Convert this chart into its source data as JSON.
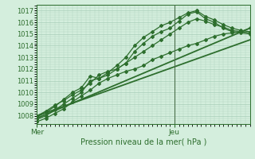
{
  "xlabel": "Pression niveau de la mer( hPa )",
  "ylim": [
    1007.3,
    1017.5
  ],
  "xlim": [
    0,
    48
  ],
  "yticks": [
    1008,
    1009,
    1010,
    1011,
    1012,
    1013,
    1014,
    1015,
    1016,
    1017
  ],
  "xtick_positions": [
    0,
    31
  ],
  "xtick_labels": [
    "Mer",
    "Jeu"
  ],
  "vline_x": 31,
  "bg_color": "#d4eedd",
  "grid_color": "#a8cdb8",
  "line_color": "#2d6e2d",
  "marker_color": "#2d6e2d",
  "line1_x": [
    0,
    2,
    4,
    6,
    8,
    10,
    12,
    14,
    16,
    18,
    20,
    22,
    24,
    26,
    28,
    30,
    32,
    34,
    36,
    38,
    40,
    42,
    44,
    46,
    48
  ],
  "line1_y": [
    1007.7,
    1008.0,
    1008.5,
    1009.0,
    1009.5,
    1010.0,
    1011.0,
    1011.2,
    1011.5,
    1012.0,
    1012.5,
    1013.5,
    1014.2,
    1014.8,
    1015.2,
    1015.5,
    1016.1,
    1016.7,
    1016.9,
    1016.3,
    1016.0,
    1015.5,
    1015.2,
    1015.1,
    1015.0
  ],
  "line2_x": [
    0,
    2,
    4,
    6,
    8,
    10,
    12,
    14,
    16,
    18,
    20,
    22,
    24,
    26,
    28,
    30,
    32,
    34,
    36,
    38,
    40,
    42,
    44,
    46,
    48
  ],
  "line2_y": [
    1007.9,
    1008.3,
    1008.8,
    1009.4,
    1010.0,
    1010.4,
    1011.4,
    1011.2,
    1011.7,
    1012.3,
    1013.0,
    1014.0,
    1014.7,
    1015.2,
    1015.7,
    1016.0,
    1016.4,
    1016.8,
    1017.0,
    1016.5,
    1016.2,
    1015.8,
    1015.5,
    1015.3,
    1015.2
  ],
  "line3_x": [
    0,
    2,
    4,
    6,
    8,
    10,
    12,
    14,
    16,
    18,
    20,
    22,
    24,
    26,
    28,
    30,
    32,
    34,
    36,
    38,
    40,
    42,
    44,
    46,
    48
  ],
  "line3_y": [
    1008.0,
    1008.4,
    1008.9,
    1009.3,
    1009.8,
    1010.2,
    1010.8,
    1011.5,
    1011.8,
    1012.0,
    1012.5,
    1013.0,
    1013.5,
    1014.0,
    1014.5,
    1015.0,
    1015.5,
    1016.0,
    1016.3,
    1016.1,
    1015.8,
    1015.6,
    1015.3,
    1015.2,
    1015.1
  ],
  "line4_x": [
    0,
    2,
    4,
    6,
    8,
    10,
    12,
    14,
    16,
    18,
    20,
    22,
    24,
    26,
    28,
    30,
    32,
    34,
    36,
    38,
    40,
    42,
    44,
    46,
    48
  ],
  "line4_y": [
    1007.5,
    1007.8,
    1008.2,
    1008.6,
    1009.2,
    1009.7,
    1010.2,
    1010.8,
    1011.2,
    1011.5,
    1011.8,
    1012.0,
    1012.3,
    1012.8,
    1013.1,
    1013.4,
    1013.7,
    1014.0,
    1014.2,
    1014.5,
    1014.8,
    1015.0,
    1015.1,
    1015.2,
    1015.5
  ],
  "trend1_x": [
    0,
    48
  ],
  "trend1_y": [
    1007.8,
    1015.5
  ],
  "trend2_x": [
    0,
    48
  ],
  "trend2_y": [
    1008.0,
    1014.5
  ]
}
